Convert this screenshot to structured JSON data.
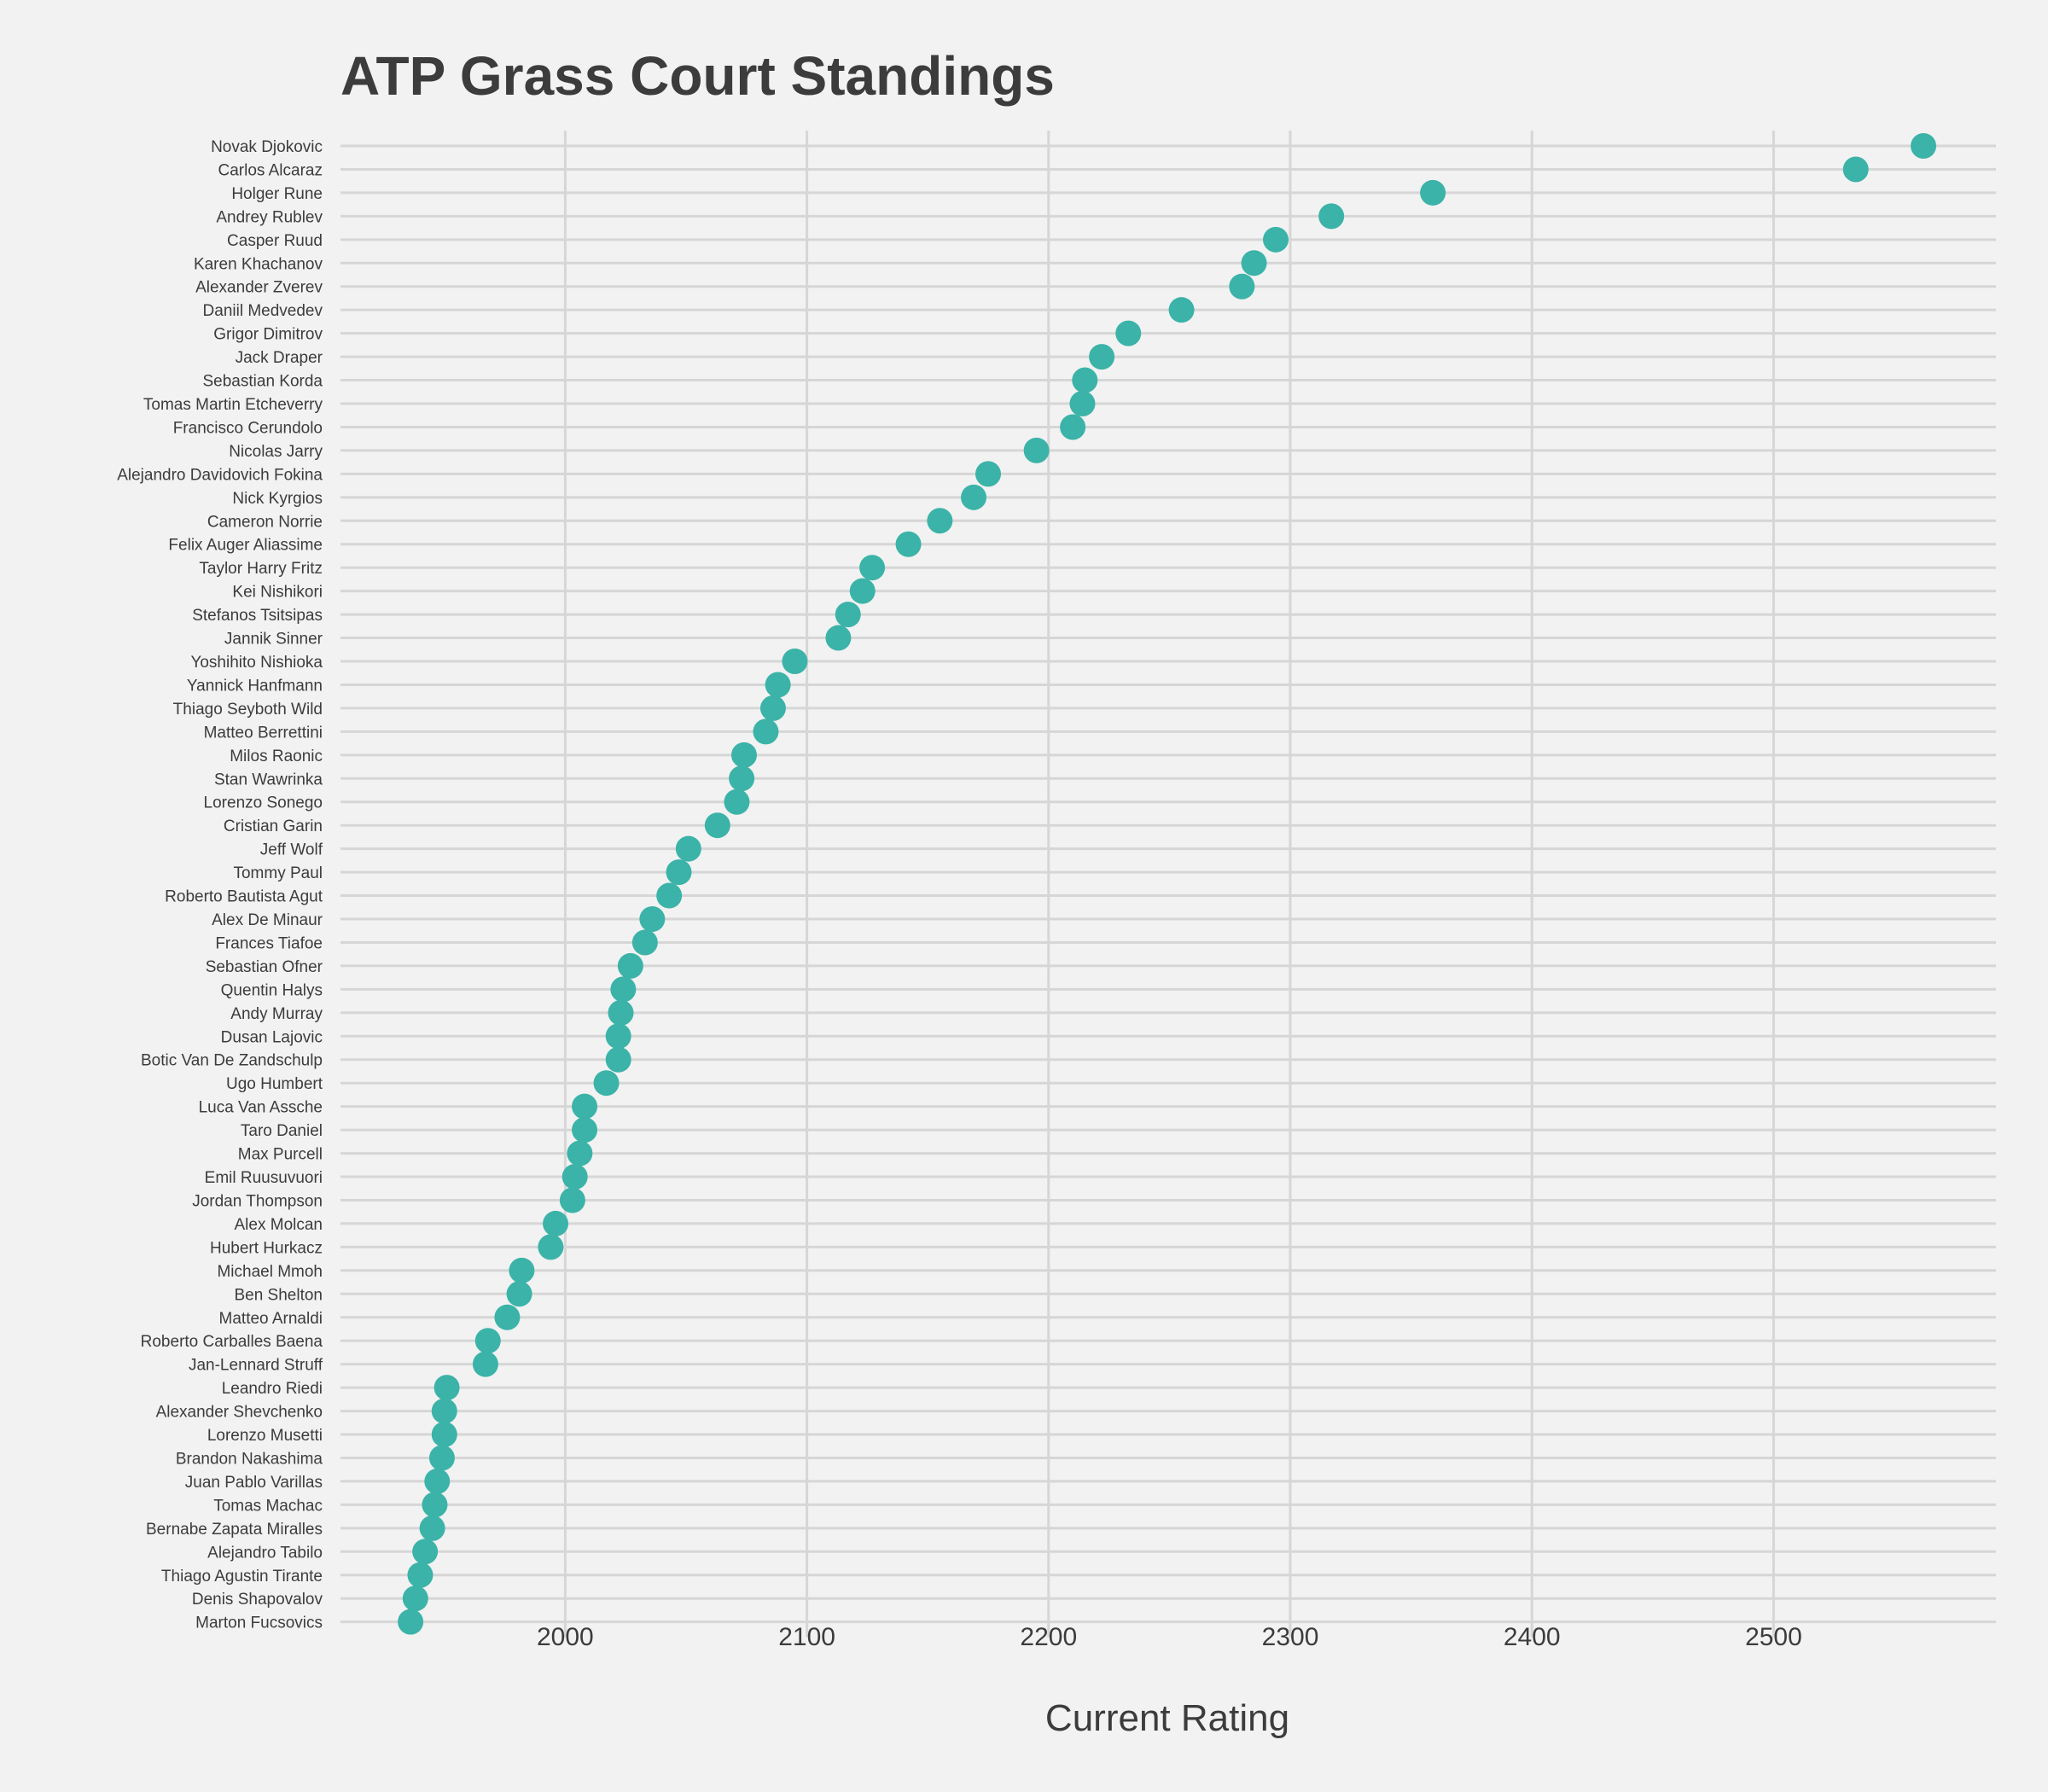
{
  "chart_data": {
    "type": "scatter",
    "title": "ATP Grass Court Standings",
    "xlabel": "Current Rating",
    "ylabel": "",
    "xlim": [
      1907,
      2592
    ],
    "xticks": [
      "2000",
      "2100",
      "2200",
      "2300",
      "2400",
      "2500"
    ],
    "grid": true,
    "legend": "none",
    "marker_color": "#3bb3a8",
    "grid_color": "#d6d6d6",
    "background": "#f2f2f2",
    "players": [
      {
        "name": "Novak Djokovic",
        "rating": 2562
      },
      {
        "name": "Carlos Alcaraz",
        "rating": 2534
      },
      {
        "name": "Holger Rune",
        "rating": 2359
      },
      {
        "name": "Andrey Rublev",
        "rating": 2317
      },
      {
        "name": "Casper Ruud",
        "rating": 2294
      },
      {
        "name": "Karen Khachanov",
        "rating": 2285
      },
      {
        "name": "Alexander Zverev",
        "rating": 2280
      },
      {
        "name": "Daniil Medvedev",
        "rating": 2255
      },
      {
        "name": "Grigor Dimitrov",
        "rating": 2233
      },
      {
        "name": "Jack Draper",
        "rating": 2222
      },
      {
        "name": "Sebastian Korda",
        "rating": 2215
      },
      {
        "name": "Tomas Martin Etcheverry",
        "rating": 2214
      },
      {
        "name": "Francisco Cerundolo",
        "rating": 2210
      },
      {
        "name": "Nicolas Jarry",
        "rating": 2195
      },
      {
        "name": "Alejandro Davidovich Fokina",
        "rating": 2175
      },
      {
        "name": "Nick Kyrgios",
        "rating": 2169
      },
      {
        "name": "Cameron Norrie",
        "rating": 2155
      },
      {
        "name": "Felix Auger Aliassime",
        "rating": 2142
      },
      {
        "name": "Taylor Harry Fritz",
        "rating": 2127
      },
      {
        "name": "Kei Nishikori",
        "rating": 2123
      },
      {
        "name": "Stefanos Tsitsipas",
        "rating": 2117
      },
      {
        "name": "Jannik Sinner",
        "rating": 2113
      },
      {
        "name": "Yoshihito Nishioka",
        "rating": 2095
      },
      {
        "name": "Yannick Hanfmann",
        "rating": 2088
      },
      {
        "name": "Thiago Seyboth Wild",
        "rating": 2086
      },
      {
        "name": "Matteo Berrettini",
        "rating": 2083
      },
      {
        "name": "Milos Raonic",
        "rating": 2074
      },
      {
        "name": "Stan Wawrinka",
        "rating": 2073
      },
      {
        "name": "Lorenzo Sonego",
        "rating": 2071
      },
      {
        "name": "Cristian Garin",
        "rating": 2063
      },
      {
        "name": "Jeff Wolf",
        "rating": 2051
      },
      {
        "name": "Tommy Paul",
        "rating": 2047
      },
      {
        "name": "Roberto Bautista Agut",
        "rating": 2043
      },
      {
        "name": "Alex De Minaur",
        "rating": 2036
      },
      {
        "name": "Frances Tiafoe",
        "rating": 2033
      },
      {
        "name": "Sebastian Ofner",
        "rating": 2027
      },
      {
        "name": "Quentin Halys",
        "rating": 2024
      },
      {
        "name": "Andy Murray",
        "rating": 2023
      },
      {
        "name": "Dusan Lajovic",
        "rating": 2022
      },
      {
        "name": "Botic Van De Zandschulp",
        "rating": 2022
      },
      {
        "name": "Ugo Humbert",
        "rating": 2017
      },
      {
        "name": "Luca Van Assche",
        "rating": 2008
      },
      {
        "name": "Taro Daniel",
        "rating": 2008
      },
      {
        "name": "Max Purcell",
        "rating": 2006
      },
      {
        "name": "Emil Ruusuvuori",
        "rating": 2004
      },
      {
        "name": "Jordan Thompson",
        "rating": 2003
      },
      {
        "name": "Alex Molcan",
        "rating": 1996
      },
      {
        "name": "Hubert Hurkacz",
        "rating": 1994
      },
      {
        "name": "Michael Mmoh",
        "rating": 1982
      },
      {
        "name": "Ben Shelton",
        "rating": 1981
      },
      {
        "name": "Matteo Arnaldi",
        "rating": 1976
      },
      {
        "name": "Roberto Carballes Baena",
        "rating": 1968
      },
      {
        "name": "Jan-Lennard Struff",
        "rating": 1967
      },
      {
        "name": "Leandro Riedi",
        "rating": 1951
      },
      {
        "name": "Alexander Shevchenko",
        "rating": 1950
      },
      {
        "name": "Lorenzo Musetti",
        "rating": 1950
      },
      {
        "name": "Brandon Nakashima",
        "rating": 1949
      },
      {
        "name": "Juan Pablo Varillas",
        "rating": 1947
      },
      {
        "name": "Tomas Machac",
        "rating": 1946
      },
      {
        "name": "Bernabe Zapata Miralles",
        "rating": 1945
      },
      {
        "name": "Alejandro Tabilo",
        "rating": 1942
      },
      {
        "name": "Thiago Agustin Tirante",
        "rating": 1940
      },
      {
        "name": "Denis Shapovalov",
        "rating": 1938
      },
      {
        "name": "Marton Fucsovics",
        "rating": 1936
      }
    ]
  }
}
